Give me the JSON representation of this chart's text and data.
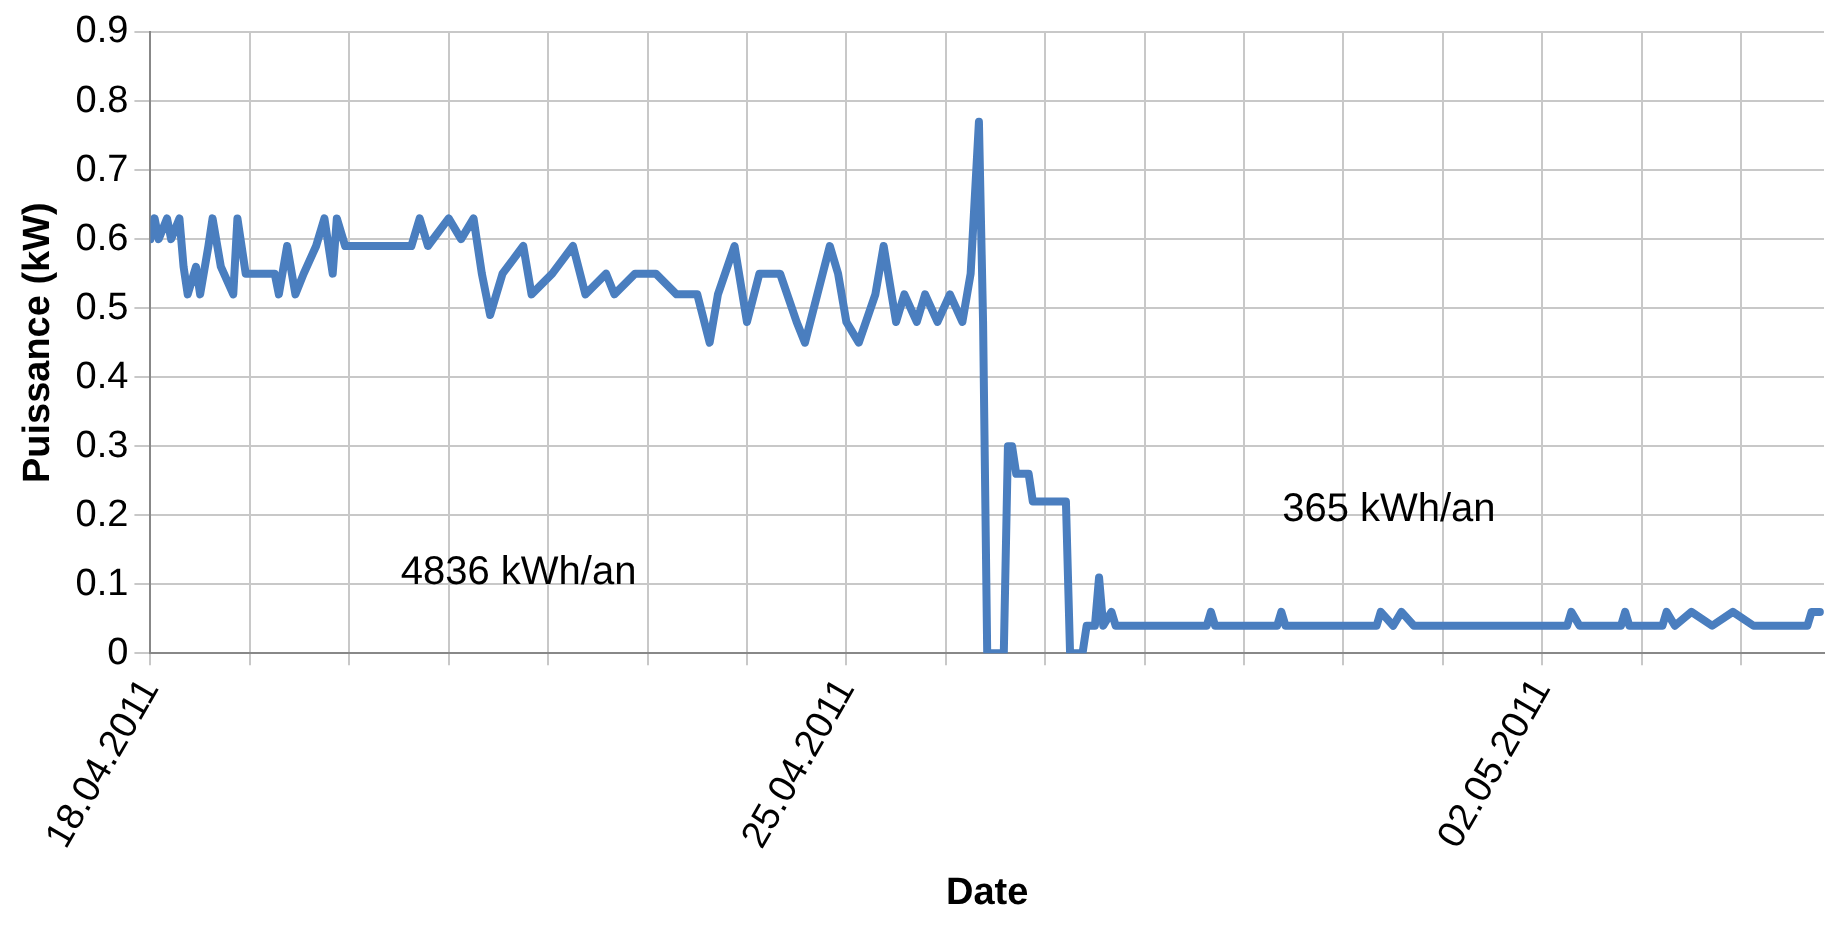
{
  "chart_data": {
    "type": "line",
    "xlabel": "Date",
    "ylabel": "Puissance (kW)",
    "color": "#4a7ebf",
    "marker": "none",
    "line_style": "solid",
    "grid": true,
    "xlim": [
      "2011-04-18",
      "2011-05-04T20:00"
    ],
    "xticks": [
      {
        "value": "2011-04-18",
        "label": "18.04.2011"
      },
      {
        "value": "2011-04-19",
        "label": null
      },
      {
        "value": "2011-04-20",
        "label": null
      },
      {
        "value": "2011-04-21",
        "label": null
      },
      {
        "value": "2011-04-22",
        "label": null
      },
      {
        "value": "2011-04-23",
        "label": null
      },
      {
        "value": "2011-04-24",
        "label": null
      },
      {
        "value": "2011-04-25",
        "label": "25.04.2011"
      },
      {
        "value": "2011-04-26",
        "label": null
      },
      {
        "value": "2011-04-27",
        "label": null
      },
      {
        "value": "2011-04-28",
        "label": null
      },
      {
        "value": "2011-04-29",
        "label": null
      },
      {
        "value": "2011-04-30",
        "label": null
      },
      {
        "value": "2011-05-01",
        "label": null
      },
      {
        "value": "2011-05-02",
        "label": "02.05.2011"
      },
      {
        "value": "2011-05-03",
        "label": null
      },
      {
        "value": "2011-05-04",
        "label": null
      }
    ],
    "ylim": [
      0,
      0.9
    ],
    "yticks": [
      0,
      0.1,
      0.2,
      0.3,
      0.4,
      0.5,
      0.6,
      0.7,
      0.8,
      0.9
    ],
    "annotations": [
      "4836 kWh/an",
      "365 kWh/an"
    ],
    "x": [
      "2011-04-18T00:00",
      "2011-04-18T01:00",
      "2011-04-18T02:00",
      "2011-04-18T04:00",
      "2011-04-18T05:00",
      "2011-04-18T07:00",
      "2011-04-18T08:00",
      "2011-04-18T09:00",
      "2011-04-18T11:00",
      "2011-04-18T12:00",
      "2011-04-18T14:00",
      "2011-04-18T15:00",
      "2011-04-18T17:00",
      "2011-04-18T20:00",
      "2011-04-18T21:00",
      "2011-04-18T23:00",
      "2011-04-19T06:00",
      "2011-04-19T07:00",
      "2011-04-19T09:00",
      "2011-04-19T11:00",
      "2011-04-19T13:00",
      "2011-04-19T16:00",
      "2011-04-19T18:00",
      "2011-04-19T20:00",
      "2011-04-19T21:00",
      "2011-04-19T23:00",
      "2011-04-20T07:00",
      "2011-04-20T15:00",
      "2011-04-20T17:00",
      "2011-04-20T19:00",
      "2011-04-21T00:00",
      "2011-04-21T03:00",
      "2011-04-21T06:00",
      "2011-04-21T08:00",
      "2011-04-21T10:00",
      "2011-04-21T13:00",
      "2011-04-21T18:00",
      "2011-04-21T20:00",
      "2011-04-22T01:00",
      "2011-04-22T06:00",
      "2011-04-22T09:00",
      "2011-04-22T14:00",
      "2011-04-22T16:00",
      "2011-04-22T21:00",
      "2011-04-23T02:00",
      "2011-04-23T07:00",
      "2011-04-23T12:00",
      "2011-04-23T15:00",
      "2011-04-23T17:00",
      "2011-04-23T21:00",
      "2011-04-24T00:00",
      "2011-04-24T03:00",
      "2011-04-24T08:00",
      "2011-04-24T12:00",
      "2011-04-24T14:00",
      "2011-04-24T17:00",
      "2011-04-24T20:00",
      "2011-04-24T22:00",
      "2011-04-25T00:00",
      "2011-04-25T03:00",
      "2011-04-25T07:00",
      "2011-04-25T09:00",
      "2011-04-25T12:00",
      "2011-04-25T14:00",
      "2011-04-25T17:00",
      "2011-04-25T19:00",
      "2011-04-25T22:00",
      "2011-04-26T01:00",
      "2011-04-26T04:00",
      "2011-04-26T06:00",
      "2011-04-26T08:00",
      "2011-04-26T09:00",
      "2011-04-26T10:00",
      "2011-04-26T14:00",
      "2011-04-26T15:00",
      "2011-04-26T16:00",
      "2011-04-26T17:00",
      "2011-04-26T20:00",
      "2011-04-26T21:00",
      "2011-04-27T05:00",
      "2011-04-27T06:00",
      "2011-04-27T09:00",
      "2011-04-27T10:00",
      "2011-04-27T12:00",
      "2011-04-27T13:00",
      "2011-04-27T14:00",
      "2011-04-27T16:00",
      "2011-04-27T17:00",
      "2011-04-28T15:00",
      "2011-04-28T16:00",
      "2011-04-28T17:00",
      "2011-04-29T08:00",
      "2011-04-29T09:00",
      "2011-04-29T10:00",
      "2011-04-30T08:00",
      "2011-04-30T09:00",
      "2011-04-30T12:00",
      "2011-04-30T14:00",
      "2011-04-30T17:00",
      "2011-05-02T06:00",
      "2011-05-02T07:00",
      "2011-05-02T09:00",
      "2011-05-02T19:00",
      "2011-05-02T20:00",
      "2011-05-02T21:00",
      "2011-05-03T05:00",
      "2011-05-03T06:00",
      "2011-05-03T08:00",
      "2011-05-03T12:00",
      "2011-05-03T17:00",
      "2011-05-03T22:00",
      "2011-05-04T03:00",
      "2011-05-04T16:00",
      "2011-05-04T17:00",
      "2011-05-04T19:00"
    ],
    "values": [
      0.6,
      0.63,
      0.6,
      0.63,
      0.6,
      0.63,
      0.56,
      0.52,
      0.56,
      0.52,
      0.59,
      0.63,
      0.56,
      0.52,
      0.63,
      0.55,
      0.55,
      0.52,
      0.59,
      0.52,
      0.55,
      0.59,
      0.63,
      0.55,
      0.63,
      0.59,
      0.59,
      0.59,
      0.63,
      0.59,
      0.63,
      0.6,
      0.63,
      0.55,
      0.49,
      0.55,
      0.59,
      0.52,
      0.55,
      0.59,
      0.52,
      0.55,
      0.52,
      0.55,
      0.55,
      0.52,
      0.52,
      0.45,
      0.52,
      0.59,
      0.48,
      0.55,
      0.55,
      0.48,
      0.45,
      0.52,
      0.59,
      0.55,
      0.48,
      0.45,
      0.52,
      0.59,
      0.48,
      0.52,
      0.48,
      0.52,
      0.48,
      0.52,
      0.48,
      0.55,
      0.77,
      0.48,
      0,
      0,
      0.3,
      0.3,
      0.26,
      0.26,
      0.22,
      0.22,
      0,
      0,
      0.04,
      0.04,
      0.11,
      0.04,
      0.06,
      0.04,
      0.04,
      0.06,
      0.04,
      0.04,
      0.06,
      0.04,
      0.04,
      0.06,
      0.04,
      0.06,
      0.04,
      0.04,
      0.06,
      0.04,
      0.04,
      0.06,
      0.04,
      0.04,
      0.06,
      0.04,
      0.06,
      0.04,
      0.06,
      0.04,
      0.04,
      0.06,
      0.06
    ]
  }
}
